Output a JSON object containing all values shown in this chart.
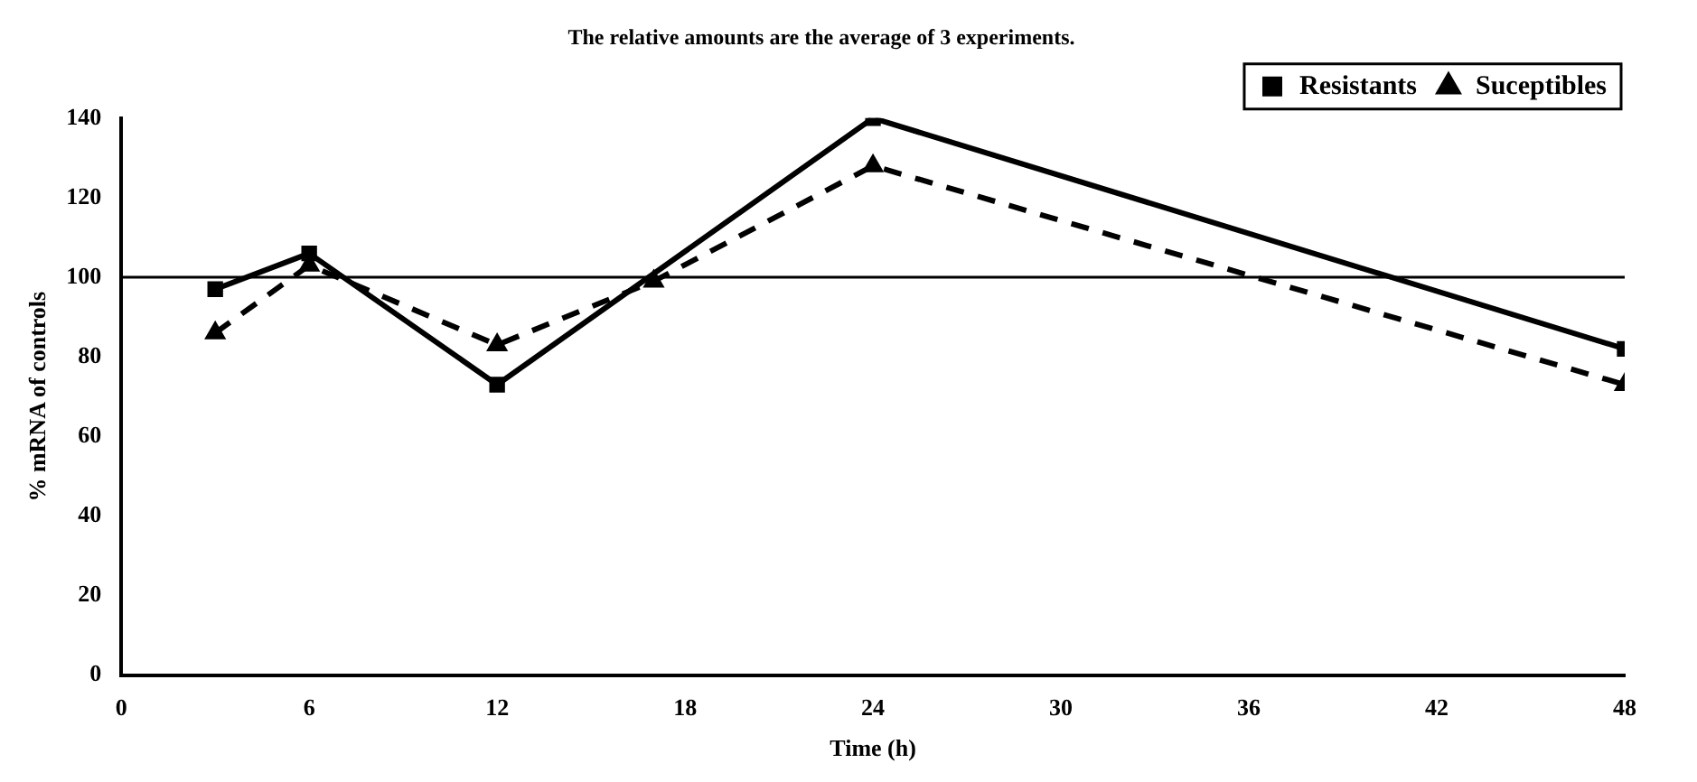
{
  "chart_data": {
    "type": "line",
    "title": "The relative amounts are the average of 3 experiments.",
    "xlabel": "Time (h)",
    "ylabel": "% mRNA of controls",
    "xlim": [
      0,
      48
    ],
    "xticks": [
      0,
      6,
      12,
      18,
      24,
      30,
      36,
      42,
      48
    ],
    "ylim": [
      0,
      140
    ],
    "yticks": [
      0,
      20,
      40,
      60,
      80,
      100,
      120,
      140
    ],
    "series": [
      {
        "name": "Resistants",
        "color": "#000000",
        "x": [
          3,
          6,
          12,
          24,
          48
        ],
        "values": [
          97,
          106,
          73,
          140,
          82
        ],
        "marker": "square",
        "line_style": "solid"
      },
      {
        "name": "Suceptibles",
        "color": "#000000",
        "x": [
          3,
          6,
          12,
          17,
          24,
          48
        ],
        "values": [
          86,
          103,
          83,
          99,
          128,
          73
        ],
        "marker": "triangle",
        "line_style": "dashed"
      }
    ],
    "ref_lines": [
      {
        "axis": "y",
        "value": 100,
        "color": "#000000"
      }
    ],
    "grid": false,
    "legend": "top right"
  }
}
